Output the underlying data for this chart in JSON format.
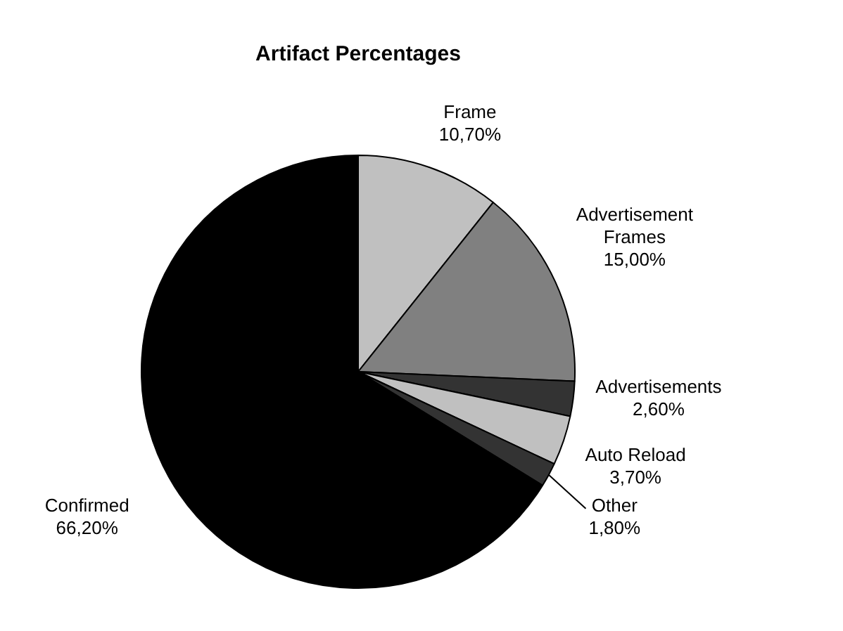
{
  "chart_data": {
    "type": "pie",
    "title": "Artifact Percentages",
    "categories": [
      "Frame",
      "Advertisement Frames",
      "Advertisements",
      "Auto Reload",
      "Other",
      "Confirmed"
    ],
    "values": [
      10.7,
      15.0,
      2.6,
      3.7,
      1.8,
      66.2
    ],
    "colors": [
      "#c0c0c0",
      "#808080",
      "#333333",
      "#c0c0c0",
      "#333333",
      "#000000"
    ],
    "value_labels": [
      "10,70%",
      "15,00%",
      "2,60%",
      "3,70%",
      "1,80%",
      "66,20%"
    ],
    "legend": false
  }
}
